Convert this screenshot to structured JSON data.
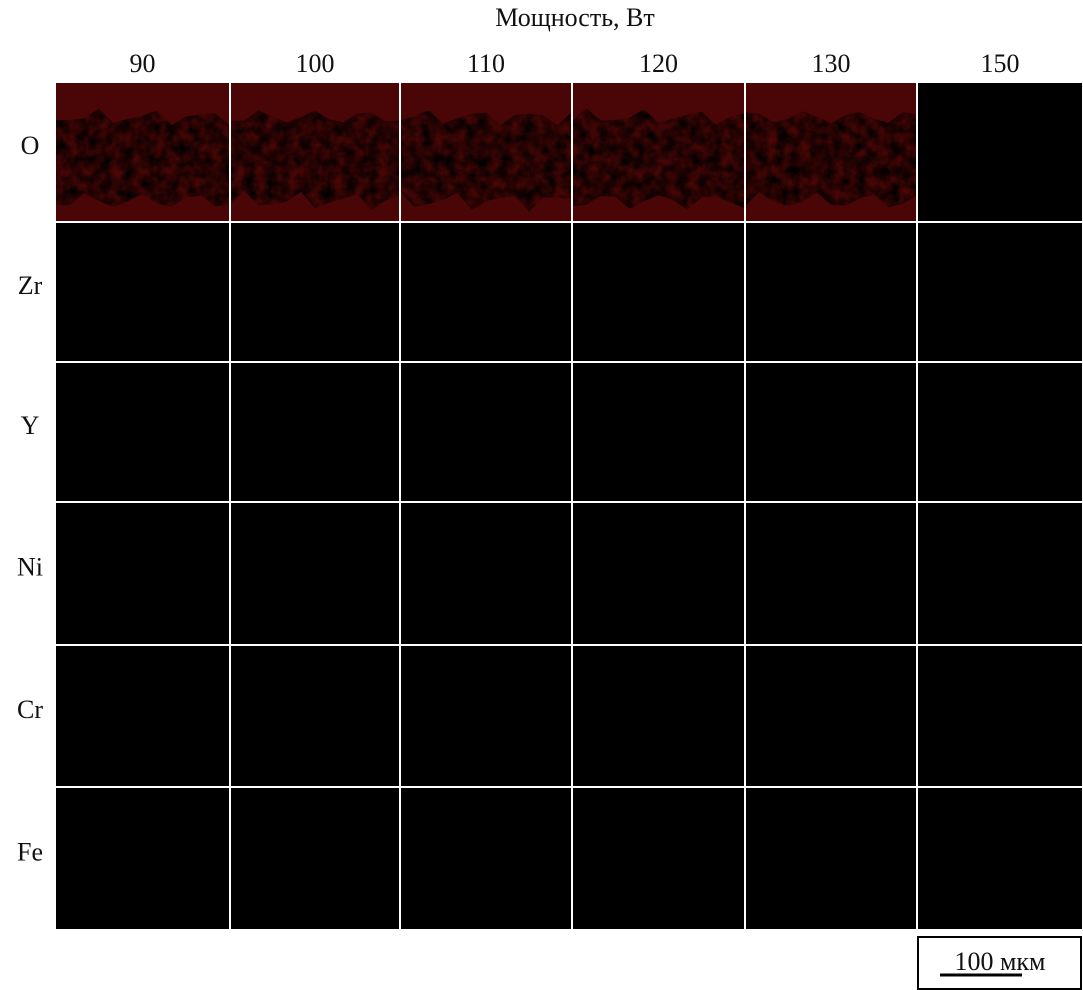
{
  "header": {
    "title": "Мощность, Вт"
  },
  "columns": [
    "90",
    "100",
    "110",
    "120",
    "130",
    "150"
  ],
  "rows": [
    "O",
    "Zr",
    "Y",
    "Ni",
    "Cr",
    "Fe"
  ],
  "scale_bar": {
    "label": "100 мкм"
  }
}
